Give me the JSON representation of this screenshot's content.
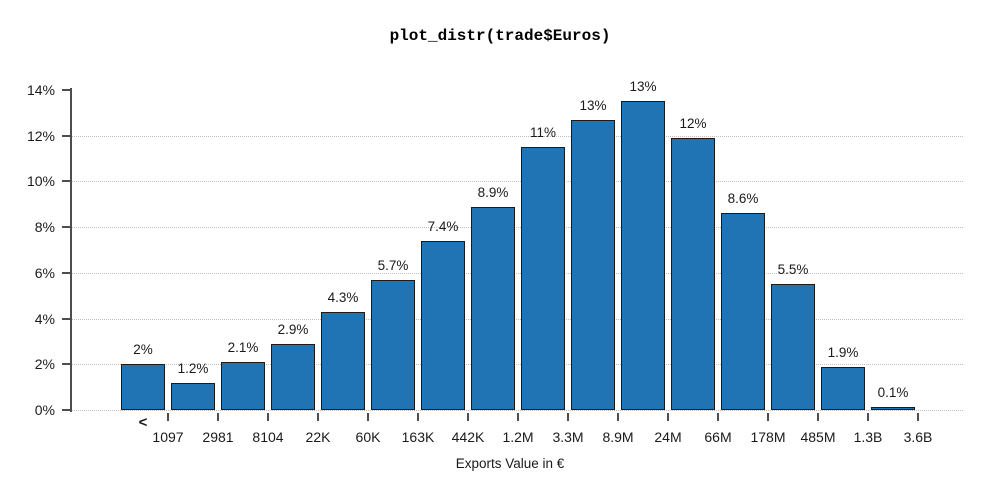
{
  "title": "plot_distr(trade$Euros)",
  "chart_data": {
    "type": "bar",
    "title": "plot_distr(trade$Euros)",
    "xlabel": "Exports Value in €",
    "ylabel": "",
    "ylim": [
      0,
      14
    ],
    "grid": "horizontal dotted lines at 0%,2%,4%,6%,8%,10%,12%",
    "legend_position": "none",
    "y_ticks": [
      {
        "label": "0%",
        "value": 0
      },
      {
        "label": "2%",
        "value": 2
      },
      {
        "label": "4%",
        "value": 4
      },
      {
        "label": "6%",
        "value": 6
      },
      {
        "label": "8%",
        "value": 8
      },
      {
        "label": "10%",
        "value": 10
      },
      {
        "label": "12%",
        "value": 12
      },
      {
        "label": "14%",
        "value": 14
      }
    ],
    "grid_values": [
      0,
      2,
      4,
      6,
      8,
      10,
      12
    ],
    "first_bin_marker": "<",
    "x_tick_labels": [
      "1097",
      "2981",
      "8104",
      "22K",
      "60K",
      "163K",
      "442K",
      "1.2M",
      "3.3M",
      "8.9M",
      "24M",
      "66M",
      "178M",
      "485M",
      "1.3B",
      "3.6B"
    ],
    "bars": [
      {
        "label": "2%",
        "value": 2.0
      },
      {
        "label": "1.2%",
        "value": 1.2
      },
      {
        "label": "2.1%",
        "value": 2.1
      },
      {
        "label": "2.9%",
        "value": 2.9
      },
      {
        "label": "4.3%",
        "value": 4.3
      },
      {
        "label": "5.7%",
        "value": 5.7
      },
      {
        "label": "7.4%",
        "value": 7.4
      },
      {
        "label": "8.9%",
        "value": 8.9
      },
      {
        "label": "11%",
        "value": 11.5
      },
      {
        "label": "13%",
        "value": 12.7
      },
      {
        "label": "13%",
        "value": 13.5
      },
      {
        "label": "12%",
        "value": 11.9
      },
      {
        "label": "8.6%",
        "value": 8.6
      },
      {
        "label": "5.5%",
        "value": 5.5
      },
      {
        "label": "1.9%",
        "value": 1.9
      },
      {
        "label": "0.1%",
        "value": 0.15
      }
    ],
    "colors": {
      "bar_fill": "#2074B4",
      "bar_border": "#1b1b1b",
      "axis": "#4d4d4d",
      "grid": "#bfbfbf",
      "text": "#1a1a1a"
    }
  }
}
